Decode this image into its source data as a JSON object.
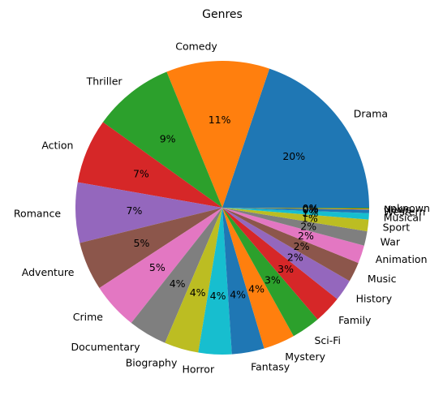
{
  "chart_data": {
    "type": "pie",
    "title": "Genres",
    "start_angle_deg": 0,
    "direction": "counterclockwise",
    "slices": [
      {
        "label": "Drama",
        "value": 20.0,
        "pct_label": "20%",
        "color": "#1f77b4"
      },
      {
        "label": "Comedy",
        "value": 11.5,
        "pct_label": "11%",
        "color": "#ff7f0e"
      },
      {
        "label": "Thriller",
        "value": 9.0,
        "pct_label": "9%",
        "color": "#2ca02c"
      },
      {
        "label": "Action",
        "value": 7.2,
        "pct_label": "7%",
        "color": "#d62728"
      },
      {
        "label": "Romance",
        "value": 6.7,
        "pct_label": "7%",
        "color": "#9467bd"
      },
      {
        "label": "Adventure",
        "value": 5.4,
        "pct_label": "5%",
        "color": "#8c564b"
      },
      {
        "label": "Crime",
        "value": 5.2,
        "pct_label": "5%",
        "color": "#e377c2"
      },
      {
        "label": "Documentary",
        "value": 4.3,
        "pct_label": "4%",
        "color": "#7f7f7f"
      },
      {
        "label": "Biography",
        "value": 3.8,
        "pct_label": "4%",
        "color": "#bcbd22"
      },
      {
        "label": "Horror",
        "value": 3.7,
        "pct_label": "4%",
        "color": "#17becf"
      },
      {
        "label": "Fantasy",
        "value": 3.6,
        "pct_label": "4%",
        "color": "#1f77b4"
      },
      {
        "label": "Mystery",
        "value": 3.5,
        "pct_label": "4%",
        "color": "#ff7f0e"
      },
      {
        "label": "Sci-Fi",
        "value": 3.2,
        "pct_label": "3%",
        "color": "#2ca02c"
      },
      {
        "label": "Family",
        "value": 3.1,
        "pct_label": "3%",
        "color": "#d62728"
      },
      {
        "label": "History",
        "value": 2.4,
        "pct_label": "2%",
        "color": "#9467bd"
      },
      {
        "label": "Music",
        "value": 2.2,
        "pct_label": "2%",
        "color": "#8c564b"
      },
      {
        "label": "Animation",
        "value": 2.0,
        "pct_label": "2%",
        "color": "#e377c2"
      },
      {
        "label": "War",
        "value": 1.6,
        "pct_label": "2%",
        "color": "#7f7f7f"
      },
      {
        "label": "Sport",
        "value": 1.3,
        "pct_label": "1%",
        "color": "#bcbd22"
      },
      {
        "label": "Musical",
        "value": 0.7,
        "pct_label": "1%",
        "color": "#17becf"
      },
      {
        "label": "Western",
        "value": 0.4,
        "pct_label": "0%",
        "color": "#1f77b4"
      },
      {
        "label": "News",
        "value": 0.1,
        "pct_label": "0%",
        "color": "#ff7f0e"
      },
      {
        "label": "unknown",
        "value": 0.1,
        "pct_label": "0%",
        "color": "#2ca02c"
      }
    ]
  }
}
